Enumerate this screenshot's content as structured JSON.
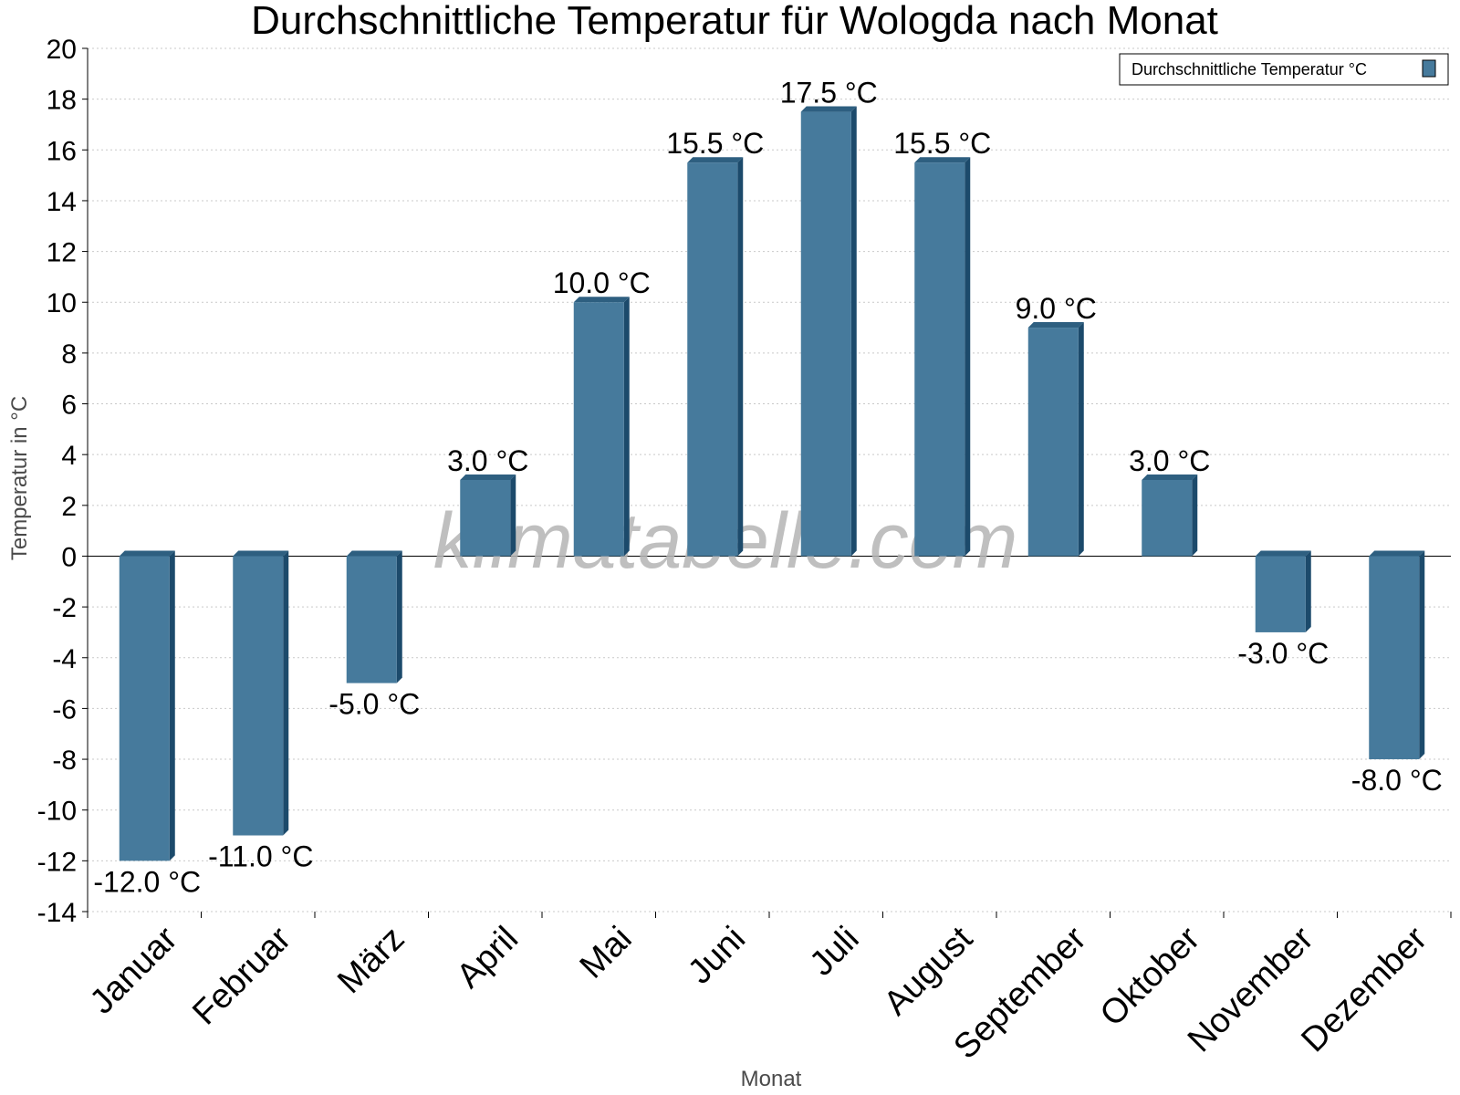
{
  "colors": {
    "bar_front": "#467a9c",
    "bar_side": "#1c4a6b",
    "bar_top": "#2e5f80",
    "grid": "#c9c9c9",
    "axis": "#000000"
  },
  "watermark": "klimatabelle.com",
  "chart_data": {
    "type": "bar",
    "title": "Durchschnittliche Temperatur für Wologda nach Monat",
    "xlabel": "Monat",
    "ylabel": "Temperatur in °C",
    "ylim": [
      -14,
      20
    ],
    "yticks": [
      -14,
      -12,
      -10,
      -8,
      -6,
      -4,
      -2,
      0,
      2,
      4,
      6,
      8,
      10,
      12,
      14,
      16,
      18,
      20
    ],
    "grid": true,
    "legend_position": "top-right",
    "categories": [
      "Januar",
      "Februar",
      "März",
      "April",
      "Mai",
      "Juni",
      "Juli",
      "August",
      "September",
      "Oktober",
      "November",
      "Dezember"
    ],
    "series": [
      {
        "name": "Durchschnittliche Temperatur °C",
        "values": [
          -12.0,
          -11.0,
          -5.0,
          3.0,
          10.0,
          15.5,
          17.5,
          15.5,
          9.0,
          3.0,
          -3.0,
          -8.0
        ],
        "labels": [
          "-12.0 °C",
          "-11.0 °C",
          "-5.0 °C",
          "3.0 °C",
          "10.0 °C",
          "15.5 °C",
          "17.5 °C",
          "15.5 °C",
          "9.0 °C",
          "3.0 °C",
          "-3.0 °C",
          "-8.0 °C"
        ]
      }
    ]
  }
}
